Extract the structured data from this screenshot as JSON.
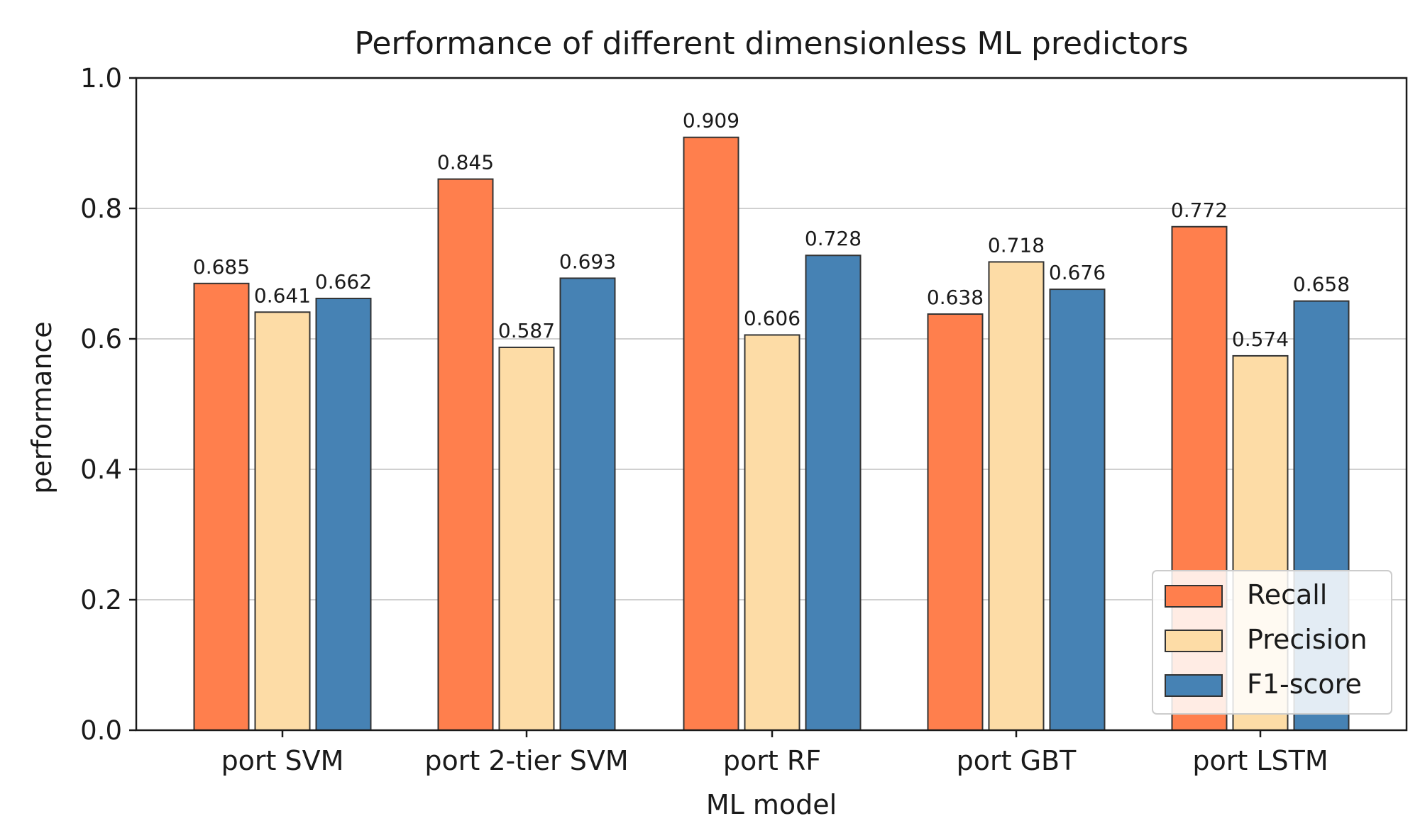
{
  "chart_data": {
    "type": "bar",
    "title": "Performance of different dimensionless ML predictors",
    "xlabel": "ML model",
    "ylabel": "performance",
    "ylim": [
      0,
      1.0
    ],
    "yticks": [
      "0.0",
      "0.2",
      "0.4",
      "0.6",
      "0.8",
      "1.0"
    ],
    "ytick_values": [
      0.0,
      0.2,
      0.4,
      0.6,
      0.8,
      1.0
    ],
    "grid": true,
    "legend_position": "bottom-right",
    "categories": [
      "port SVM",
      "port 2-tier SVM",
      "port RF",
      "port GBT",
      "port LSTM"
    ],
    "series": [
      {
        "name": "Recall",
        "color": "#ff7f4d",
        "values": [
          0.685,
          0.845,
          0.909,
          0.638,
          0.772
        ],
        "labels": [
          "0.685",
          "0.845",
          "0.909",
          "0.638",
          "0.772"
        ]
      },
      {
        "name": "Precision",
        "color": "#fddca6",
        "values": [
          0.641,
          0.587,
          0.606,
          0.718,
          0.574
        ],
        "labels": [
          "0.641",
          "0.587",
          "0.606",
          "0.718",
          "0.574"
        ]
      },
      {
        "name": "F1-score",
        "color": "#4682b4",
        "values": [
          0.662,
          0.693,
          0.728,
          0.676,
          0.658
        ],
        "labels": [
          "0.662",
          "0.693",
          "0.728",
          "0.676",
          "0.658"
        ]
      }
    ]
  }
}
